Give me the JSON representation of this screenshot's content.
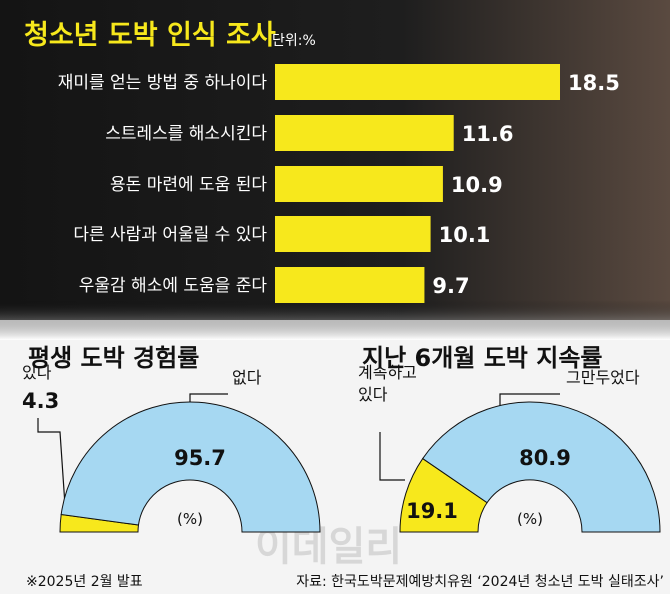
{
  "chart_data": [
    {
      "type": "bar",
      "orientation": "horizontal",
      "title": "청소년 도박 인식 조사",
      "unit": "단위:%",
      "categories": [
        "재미를 얻는 방법 중 하나이다",
        "스트레스를 해소시킨다",
        "용돈 마련에 도움 된다",
        "다른 사람과 어울릴 수 있다",
        "우울감 해소에 도움을 준다"
      ],
      "values": [
        18.5,
        11.6,
        10.9,
        10.1,
        9.7
      ],
      "color": "#f7e81c"
    },
    {
      "type": "semi-donut",
      "title": "평생 도박 경험률",
      "center_label": "(%)",
      "categories": [
        "있다",
        "없다"
      ],
      "values": [
        4.3,
        95.7
      ],
      "colors": [
        "#f7e81c",
        "#a6d8f2"
      ]
    },
    {
      "type": "semi-donut",
      "title": "지난 6개월 도박 지속률",
      "center_label": "(%)",
      "categories": [
        "계속하고\n있다",
        "그만두었다"
      ],
      "values": [
        19.1,
        80.9
      ],
      "colors": [
        "#f7e81c",
        "#a6d8f2"
      ]
    }
  ],
  "note": "※2025년 2월 발표",
  "source": "자료: 한국도박문제예방치유원 ‘2024년 청소년 도박 실태조사’",
  "watermark": "이데일리"
}
